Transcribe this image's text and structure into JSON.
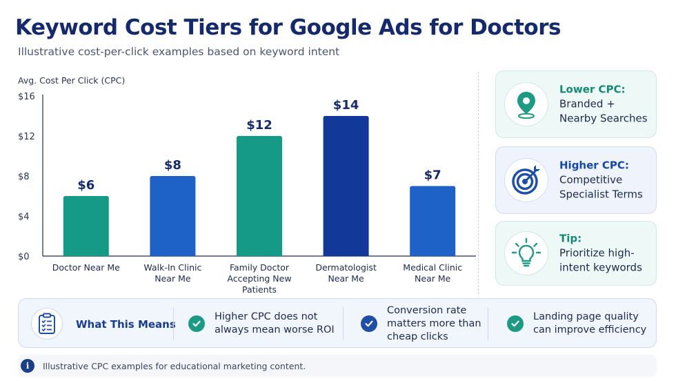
{
  "header": {
    "title": "Keyword Cost Tiers for Google Ads for Doctors",
    "subtitle": "Illustrative cost-per-click examples based on keyword intent"
  },
  "chart_data": {
    "type": "bar",
    "title": "",
    "ylabel": "Avg. Cost Per Click (CPC)",
    "xlabel": "",
    "ylim": [
      0,
      16
    ],
    "yticks": [
      "$0",
      "$4",
      "$8",
      "$12",
      "$16"
    ],
    "ytick_values": [
      0,
      4,
      8,
      12,
      16
    ],
    "grid": false,
    "categories": [
      [
        "Doctor Near Me"
      ],
      [
        "Walk-In Clinic",
        "Near Me"
      ],
      [
        "Family Doctor",
        "Accepting New",
        "Patients"
      ],
      [
        "Dermatologist",
        "Near Me"
      ],
      [
        "Medical Clinic",
        "Near Me"
      ]
    ],
    "values": [
      6,
      8,
      12,
      14,
      7
    ],
    "value_labels": [
      "$6",
      "$8",
      "$12",
      "$14",
      "$7"
    ],
    "bar_colors": [
      "#159a88",
      "#1e62c8",
      "#159a88",
      "#12389a",
      "#1e62c8"
    ]
  },
  "cards": [
    {
      "heading": "Lower CPC:",
      "lines": [
        "Branded +",
        "Nearby Searches"
      ],
      "icon": "location-pin-icon",
      "color": "#148a73"
    },
    {
      "heading": "Higher CPC:",
      "lines": [
        "Competitive",
        "Specialist Terms"
      ],
      "icon": "target-icon",
      "color": "#1648a8"
    },
    {
      "heading": "Tip:",
      "lines": [
        "Prioritize high-",
        "intent keywords"
      ],
      "icon": "lightbulb-icon",
      "color": "#148a73"
    }
  ],
  "means": {
    "heading": "What This Means",
    "icon": "checklist-icon",
    "points": [
      {
        "lines": [
          "Higher CPC does not",
          "always mean worse ROI"
        ],
        "color": "#1d9a83"
      },
      {
        "lines": [
          "Conversion rate",
          "matters more than",
          "cheap clicks"
        ],
        "color": "#1e4fa6"
      },
      {
        "lines": [
          "Landing page quality",
          "can improve efficiency"
        ],
        "color": "#1d9a83"
      }
    ]
  },
  "footer": {
    "icon": "info-icon",
    "info_glyph": "i",
    "text": "Illustrative CPC examples for educational marketing content."
  }
}
